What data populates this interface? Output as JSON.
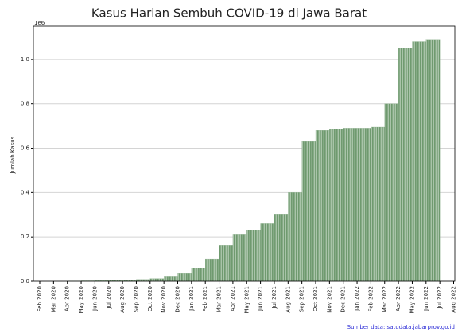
{
  "chart_data": {
    "type": "bar",
    "title": "Kasus Harian Sembuh COVID-19 di Jawa Barat",
    "y_label": "Jumlah Kasus",
    "y_offset_label": "1e6",
    "source": "Sumber data: satudata.jabarprov.go.id",
    "categories": [
      "Feb 2020",
      "Mar 2020",
      "Apr 2020",
      "May 2020",
      "Jun 2020",
      "Jul 2020",
      "Aug 2020",
      "Sep 2020",
      "Oct 2020",
      "Nov 2020",
      "Dec 2020",
      "Jan 2021",
      "Feb 2021",
      "Mar 2021",
      "Apr 2021",
      "May 2021",
      "Jun 2021",
      "Jul 2021",
      "Aug 2021",
      "Sep 2021",
      "Oct 2021",
      "Nov 2021",
      "Dec 2021",
      "Jan 2022",
      "Feb 2022",
      "Mar 2022",
      "Apr 2022",
      "May 2022",
      "Jun 2022",
      "Jul 2022",
      "Aug 2022"
    ],
    "values": [
      null,
      0,
      1000,
      2000,
      3000,
      4000,
      6000,
      8000,
      12000,
      20000,
      35000,
      60000,
      100000,
      160000,
      210000,
      230000,
      260000,
      300000,
      400000,
      630000,
      680000,
      685000,
      690000,
      690000,
      695000,
      800000,
      1050000,
      1080000,
      1090000,
      null,
      null
    ],
    "color": "#8fb18f",
    "ylim": [
      0,
      1150000
    ],
    "yticks": [
      {
        "value": 0,
        "label": "0.0"
      },
      {
        "value": 200000,
        "label": "0.2"
      },
      {
        "value": 400000,
        "label": "0.4"
      },
      {
        "value": 600000,
        "label": "0.6"
      },
      {
        "value": 800000,
        "label": "0.8"
      },
      {
        "value": 1000000,
        "label": "1.0"
      }
    ],
    "grid": true
  }
}
